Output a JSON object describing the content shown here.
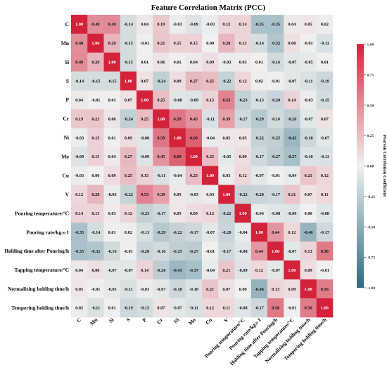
{
  "chart_data": {
    "type": "heatmap",
    "title": "Feature Correlation Matrix (PCC)",
    "labels": [
      "C",
      "Mn",
      "Si",
      "S",
      "P",
      "Cr",
      "Ni",
      "Mo",
      "Cu",
      "V",
      "Pouring temperature/°C",
      "Pouring rate/kg.s-1",
      "Holding time after Pouring/h",
      "Tapping temperature/°C",
      "Normalizing holding time/h",
      "Tempering holding time/h"
    ],
    "values": [
      [
        1.0,
        0.48,
        0.49,
        -0.14,
        0.04,
        0.19,
        -0.03,
        -0.09,
        -0.03,
        0.12,
        0.14,
        -0.35,
        -0.35,
        0.04,
        0.05,
        0.02
      ],
      [
        0.48,
        1.0,
        0.29,
        -0.15,
        -0.01,
        0.21,
        0.15,
        0.15,
        -0.0,
        0.28,
        0.13,
        -0.14,
        -0.32,
        0.08,
        -0.01,
        -0.11
      ],
      [
        0.49,
        0.29,
        1.0,
        -0.15,
        0.01,
        0.06,
        0.01,
        0.04,
        0.09,
        -0.03,
        0.03,
        0.01,
        -0.16,
        -0.07,
        -0.05,
        0.01
      ],
      [
        -0.14,
        -0.15,
        -0.15,
        1.0,
        0.07,
        -0.24,
        0.09,
        0.27,
        0.25,
        -0.22,
        0.12,
        0.02,
        -0.01,
        -0.07,
        -0.11,
        -0.19
      ],
      [
        0.04,
        -0.01,
        0.01,
        0.07,
        1.0,
        0.25,
        -0.08,
        -0.09,
        0.15,
        0.53,
        -0.23,
        -0.13,
        -0.2,
        0.14,
        -0.03,
        -0.15
      ],
      [
        0.19,
        0.21,
        0.06,
        -0.24,
        0.25,
        1.0,
        0.59,
        0.45,
        -0.11,
        0.39,
        -0.17,
        -0.29,
        -0.16,
        -0.26,
        -0.07,
        0.07
      ],
      [
        -0.03,
        0.15,
        0.01,
        0.09,
        -0.08,
        0.59,
        1.0,
        0.69,
        -0.04,
        0.05,
        0.05,
        -0.22,
        -0.25,
        -0.43,
        -0.18,
        -0.07
      ],
      [
        -0.09,
        0.15,
        0.04,
        0.27,
        -0.09,
        0.45,
        0.69,
        1.0,
        0.25,
        -0.05,
        0.09,
        -0.17,
        -0.27,
        -0.37,
        -0.1,
        -0.11
      ],
      [
        -0.03,
        -0.0,
        0.09,
        0.25,
        0.15,
        -0.11,
        -0.04,
        0.25,
        1.0,
        0.03,
        0.12,
        -0.07,
        -0.01,
        -0.04,
        0.21,
        0.12
      ],
      [
        0.12,
        0.28,
        -0.03,
        -0.22,
        0.53,
        0.39,
        0.05,
        -0.05,
        0.03,
        1.0,
        -0.22,
        -0.2,
        -0.17,
        0.21,
        0.07,
        0.11
      ],
      [
        0.14,
        0.13,
        0.03,
        0.12,
        -0.23,
        -0.17,
        0.05,
        0.09,
        0.12,
        -0.22,
        1.0,
        -0.04,
        -0.08,
        -0.09,
        -0.0,
        -0.08
      ],
      [
        -0.35,
        -0.14,
        0.01,
        0.02,
        -0.13,
        -0.29,
        -0.22,
        -0.17,
        -0.07,
        -0.2,
        -0.04,
        1.0,
        0.44,
        0.12,
        -0.46,
        -0.17
      ],
      [
        -0.35,
        -0.32,
        -0.16,
        -0.01,
        -0.2,
        -0.16,
        -0.25,
        -0.27,
        -0.01,
        -0.17,
        -0.08,
        0.44,
        1.0,
        -0.07,
        0.13,
        0.58
      ],
      [
        0.04,
        0.08,
        -0.07,
        -0.07,
        0.14,
        -0.26,
        -0.43,
        -0.37,
        -0.04,
        0.21,
        -0.09,
        0.12,
        -0.07,
        1.0,
        0.09,
        -0.01
      ],
      [
        0.05,
        -0.01,
        -0.05,
        -0.11,
        -0.03,
        -0.07,
        -0.18,
        -0.1,
        0.21,
        0.07,
        -0.0,
        -0.46,
        0.13,
        0.09,
        1.0,
        0.56
      ],
      [
        0.02,
        -0.11,
        0.01,
        -0.19,
        -0.15,
        0.07,
        -0.07,
        -0.11,
        0.12,
        0.11,
        -0.08,
        -0.17,
        0.58,
        -0.01,
        0.56,
        1.0
      ]
    ],
    "vmin": -1.0,
    "vmax": 1.0,
    "colorbar": {
      "label": "Pearson Correlation Coefficient",
      "ticks": [
        "1.00",
        "0.75",
        "0.50",
        "0.25",
        "0.00",
        "-0.25",
        "-0.50",
        "-0.75",
        "-1.00"
      ]
    },
    "colors": {
      "low": "#2c6b80",
      "mid": "#f0f0f0",
      "high": "#d3223a"
    }
  }
}
